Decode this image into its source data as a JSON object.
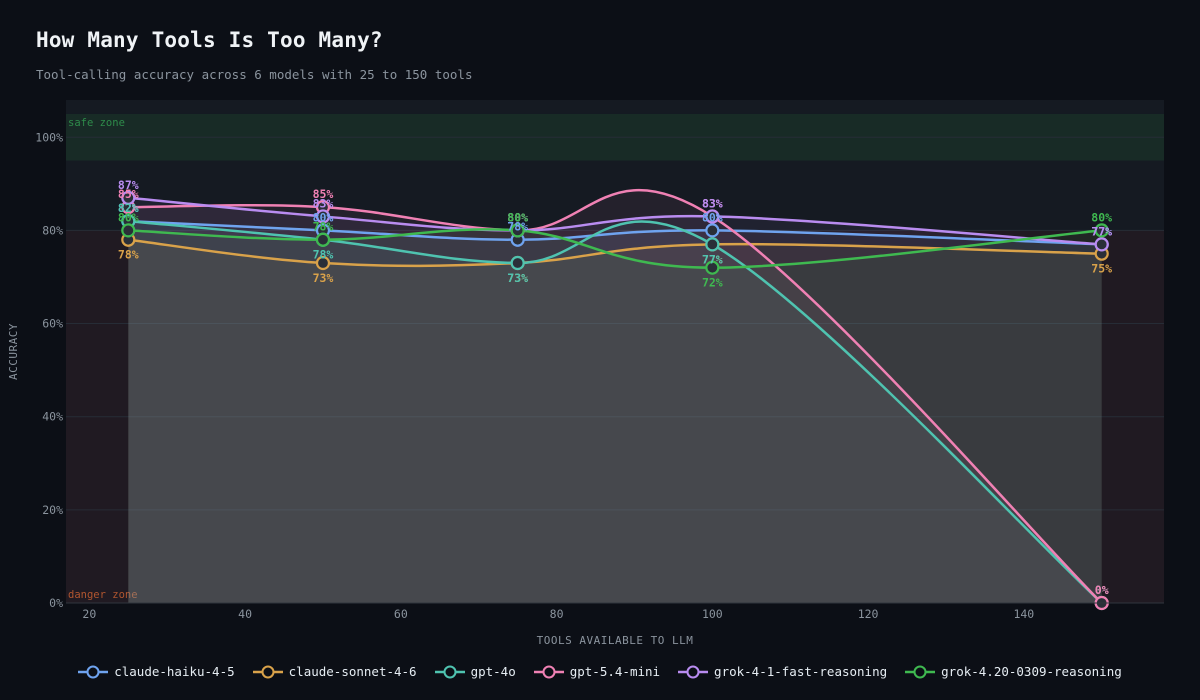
{
  "header": {
    "title": "How Many Tools Is Too Many?",
    "subtitle": "Tool-calling accuracy across 6 models with 25 to 150 tools"
  },
  "chart_data": {
    "type": "line",
    "title": "How Many Tools Is Too Many?",
    "subtitle": "Tool-calling accuracy across 6 models with 25 to 150 tools",
    "xlabel": "TOOLS AVAILABLE TO LLM",
    "ylabel": "ACCURACY",
    "x": [
      25,
      50,
      75,
      100,
      150
    ],
    "xlim": [
      17,
      158
    ],
    "ylim": [
      0,
      108
    ],
    "xticks": [
      20,
      40,
      60,
      80,
      100,
      120,
      140
    ],
    "yticks": [
      0,
      20,
      40,
      60,
      80,
      100
    ],
    "ytick_suffix": "%",
    "zones": [
      {
        "name": "safe zone",
        "from": 95,
        "to": 105,
        "color": "#1c3a2a"
      },
      {
        "name": "danger zone",
        "from": 0,
        "to": 80,
        "color": "#2a1c22"
      }
    ],
    "grid": true,
    "legend_position": "bottom-center",
    "series": [
      {
        "name": "claude-haiku-4-5",
        "color": "#6fa3ef",
        "values": [
          82,
          80,
          78,
          80,
          77
        ],
        "labels": [
          "82%",
          "80%",
          "78%",
          "80%",
          "77%"
        ]
      },
      {
        "name": "claude-sonnet-4-6",
        "color": "#d9a24a",
        "values": [
          78,
          73,
          73,
          77,
          75
        ],
        "labels": [
          "78%",
          "73%",
          "73%",
          "77%",
          "75%"
        ]
      },
      {
        "name": "gpt-4o",
        "color": "#4fc3b0",
        "values": [
          82,
          78,
          73,
          77,
          0
        ],
        "labels": [
          "82%",
          "78%",
          "73%",
          "77%",
          "0%"
        ]
      },
      {
        "name": "gpt-5.4-mini",
        "color": "#f081b4",
        "values": [
          85,
          85,
          80,
          83,
          0
        ],
        "labels": [
          "85%",
          "85%",
          "80%",
          "83%",
          "0%"
        ]
      },
      {
        "name": "grok-4-1-fast-reasoning",
        "color": "#b98cf0",
        "values": [
          87,
          83,
          80,
          83,
          77
        ],
        "labels": [
          "87%",
          "83%",
          "80%",
          "83%",
          "77%"
        ]
      },
      {
        "name": "grok-4.20-0309-reasoning",
        "color": "#3fb950",
        "values": [
          80,
          78,
          80,
          72,
          80
        ],
        "labels": [
          "80%",
          "78%",
          "80%",
          "72%",
          "80%"
        ]
      }
    ]
  }
}
